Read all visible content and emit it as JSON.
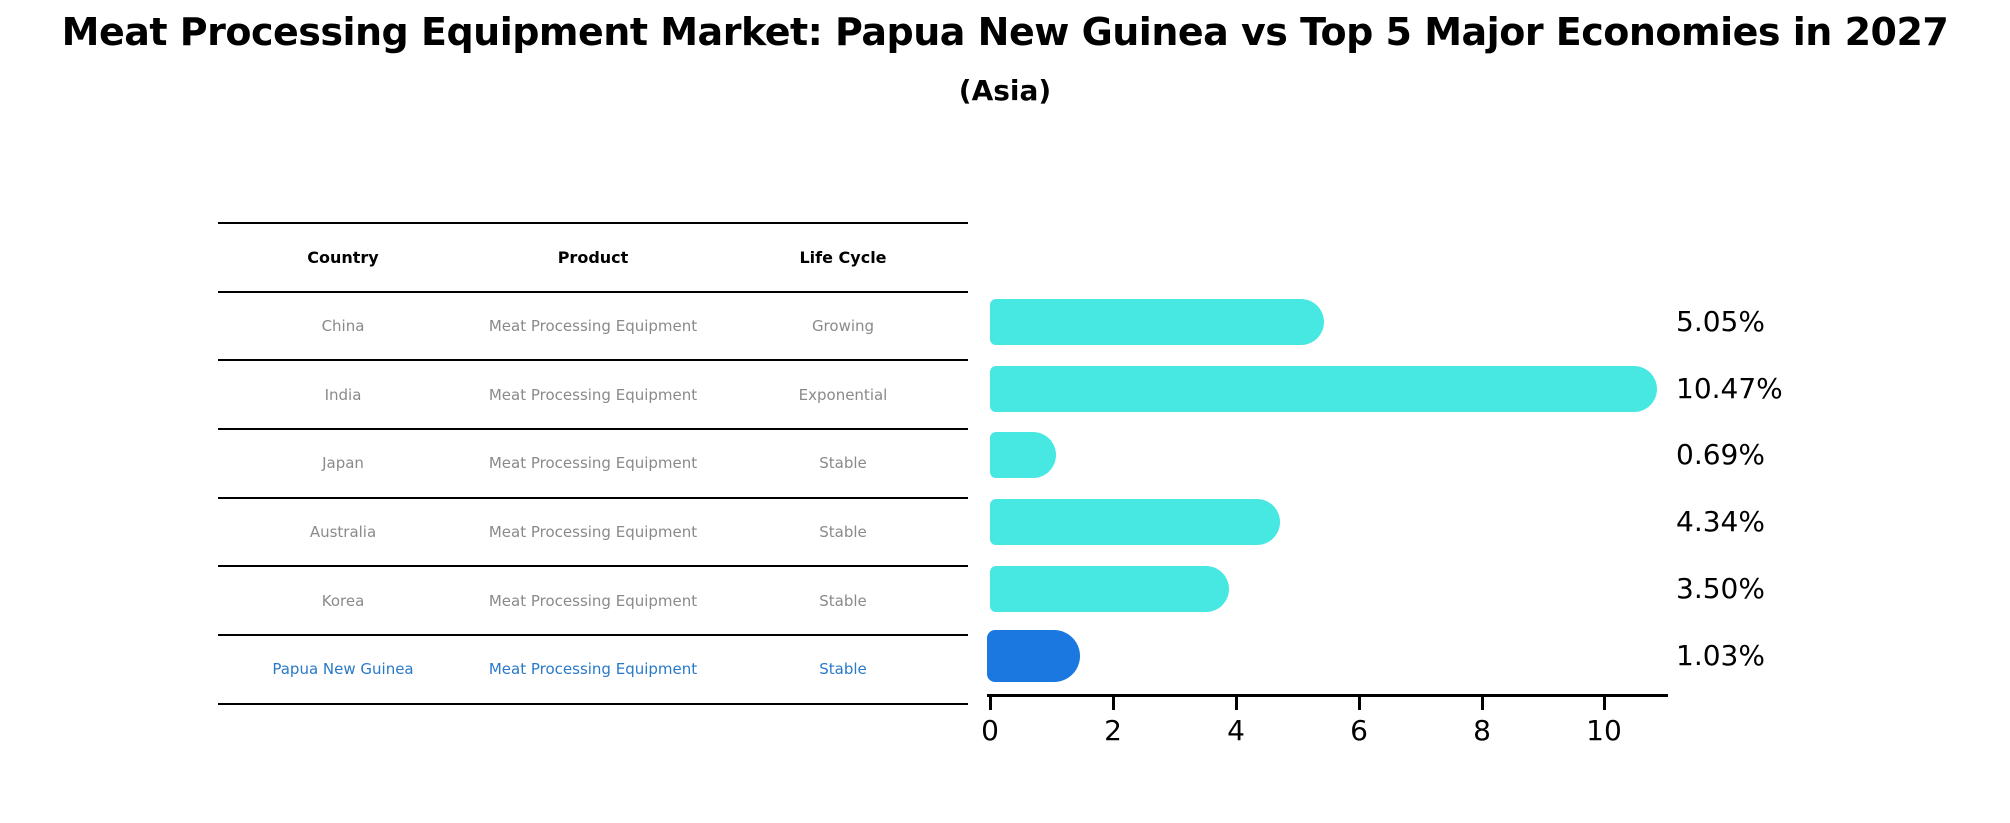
{
  "title": "Meat Processing Equipment Market: Papua New Guinea vs Top 5 Major Economies in 2027",
  "subtitle": "(Asia)",
  "table": {
    "headers": [
      "Country",
      "Product",
      "Life Cycle"
    ],
    "rows": [
      {
        "country": "China",
        "product": "Meat Processing Equipment",
        "life_cycle": "Growing",
        "highlight": false
      },
      {
        "country": "India",
        "product": "Meat Processing Equipment",
        "life_cycle": "Exponential",
        "highlight": false
      },
      {
        "country": "Japan",
        "product": "Meat Processing Equipment",
        "life_cycle": "Stable",
        "highlight": false
      },
      {
        "country": "Australia",
        "product": "Meat Processing Equipment",
        "life_cycle": "Stable",
        "highlight": false
      },
      {
        "country": "Korea",
        "product": "Meat Processing Equipment",
        "life_cycle": "Stable",
        "highlight": false
      },
      {
        "country": "Papua New Guinea",
        "product": "Meat Processing Equipment",
        "life_cycle": "Stable",
        "highlight": true
      }
    ]
  },
  "chart_data": {
    "type": "bar",
    "orientation": "horizontal",
    "title": "Meat Processing Equipment Market: Papua New Guinea vs Top 5 Major Economies in 2027 (Asia)",
    "categories": [
      "China",
      "India",
      "Japan",
      "Australia",
      "Korea",
      "Papua New Guinea"
    ],
    "values": [
      5.05,
      10.47,
      0.69,
      4.34,
      3.5,
      1.03
    ],
    "value_labels": [
      "5.05%",
      "10.47%",
      "0.69%",
      "4.34%",
      "3.50%",
      "1.03%"
    ],
    "xlim": [
      0,
      11
    ],
    "x_ticks": [
      0,
      2,
      4,
      6,
      8,
      10
    ],
    "grid": false,
    "legend": false,
    "bar_color": "#46e8e1",
    "highlight_color": "#1b78e0",
    "highlight_index": 5,
    "highlight_text_color": "#2979c9"
  }
}
